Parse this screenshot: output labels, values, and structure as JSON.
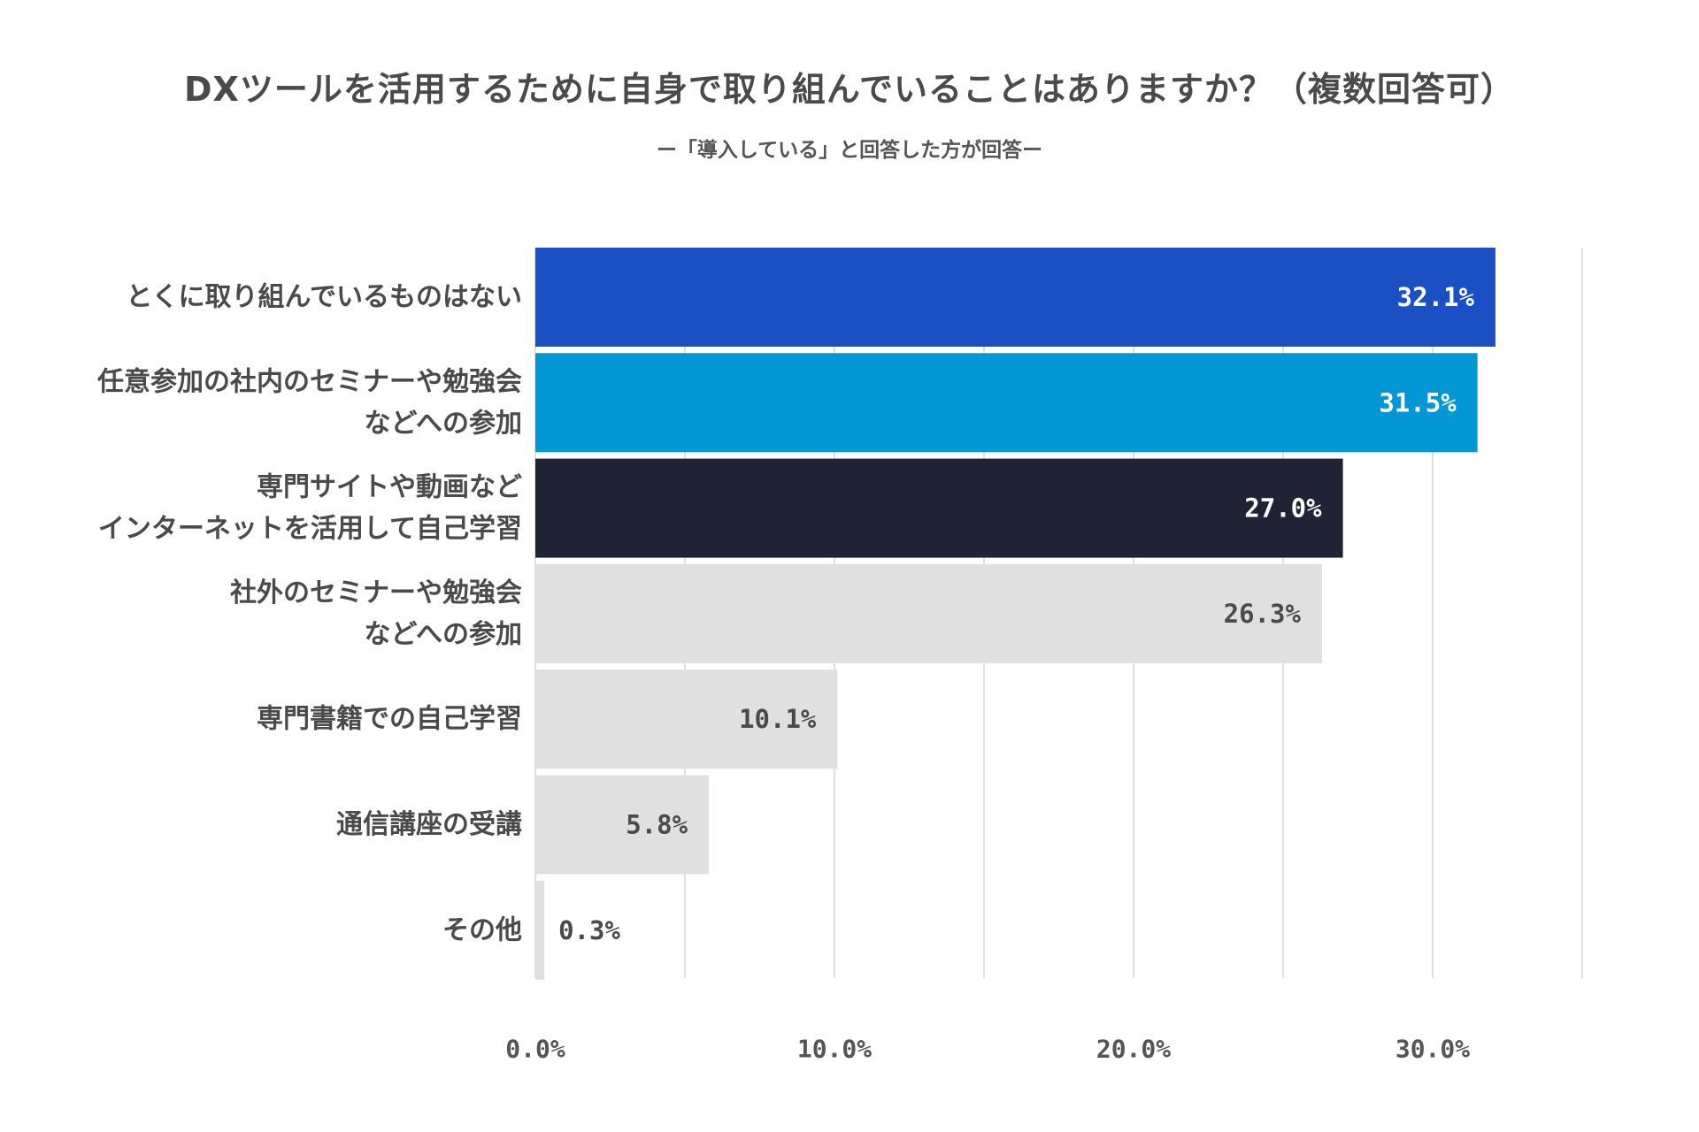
{
  "chart_data": {
    "type": "bar",
    "orientation": "horizontal",
    "title": "DXツールを活用するために自身で取り組んでいることはありますか？（複数回答可）",
    "subtitle": "ー「導入している」と回答した方が回答ー",
    "categories": [
      [
        "とくに取り組んでいるものはない"
      ],
      [
        "任意参加の社内のセミナーや勉強会",
        "などへの参加"
      ],
      [
        "専門サイトや動画など",
        "インターネットを活用して自己学習"
      ],
      [
        "社外のセミナーや勉強会",
        "などへの参加"
      ],
      [
        "専門書籍での自己学習"
      ],
      [
        "通信講座の受講"
      ],
      [
        "その他"
      ]
    ],
    "values": [
      32.1,
      31.5,
      27.0,
      26.3,
      10.1,
      5.8,
      0.3
    ],
    "value_labels": [
      "32.1%",
      "31.5%",
      "27.0%",
      "26.3%",
      "10.1%",
      "5.8%",
      "0.3%"
    ],
    "bar_colors": [
      "#1a50c4",
      "#0097d4",
      "#1f2333",
      "#e0e0e0",
      "#e0e0e0",
      "#e0e0e0",
      "#e0e0e0"
    ],
    "value_label_colors": [
      "#ffffff",
      "#ffffff",
      "#ffffff",
      "#4a4a4a",
      "#4a4a4a",
      "#4a4a4a",
      "#4a4a4a"
    ],
    "xlim": [
      0,
      35
    ],
    "grid_values": [
      5,
      10,
      15,
      20,
      25,
      30,
      35
    ],
    "tick_values": [
      0,
      10,
      20,
      30
    ],
    "tick_labels": [
      "0.0%",
      "10.0%",
      "20.0%",
      "30.0%"
    ],
    "grid": true,
    "legend": false
  }
}
